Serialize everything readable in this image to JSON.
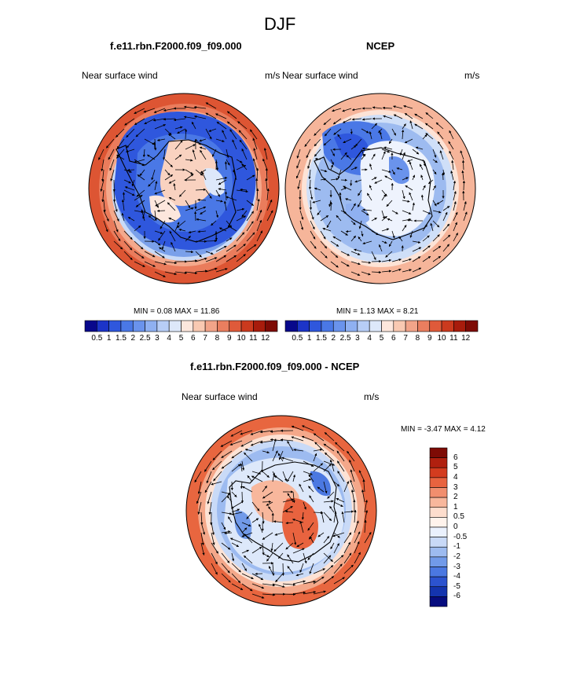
{
  "figure": {
    "title": "DJF"
  },
  "panels": [
    {
      "id": "model",
      "title": "f.e11.rbn.F2000.f09_f09.000",
      "left_label": "Near surface wind",
      "right_label": "m/s",
      "min_max": "MIN =   0.08 MAX =  11.86"
    },
    {
      "id": "obs",
      "title": "NCEP",
      "left_label": "Near surface wind",
      "right_label": "m/s",
      "min_max": "MIN =   1.13 MAX =   8.21"
    },
    {
      "id": "diff",
      "title": "f.e11.rbn.F2000.f09_f09.000 - NCEP",
      "left_label": "Near surface wind",
      "right_label": "m/s",
      "min_max": "MIN =  -3.47 MAX =   4.12"
    }
  ],
  "colorbar_abs": {
    "labels": [
      "0.5",
      "1",
      "1.5",
      "2",
      "2.5",
      "3",
      "4",
      "5",
      "6",
      "7",
      "8",
      "9",
      "10",
      "11",
      "12"
    ],
    "colors": [
      "#08088c",
      "#1c34c8",
      "#2f57dd",
      "#4a78e6",
      "#6a93ec",
      "#8fb0f1",
      "#b7cdf6",
      "#dde8fa",
      "#fde7dd",
      "#f9c9b2",
      "#f2a489",
      "#ea7e5f",
      "#df5a3a",
      "#cb3a1e",
      "#a81c0c",
      "#7e0b05"
    ]
  },
  "colorbar_diff": {
    "labels": [
      "6",
      "5",
      "4",
      "3",
      "2",
      "1",
      "0.5",
      "0",
      "-0.5",
      "-1",
      "-2",
      "-3",
      "-4",
      "-5",
      "-6"
    ],
    "colors": [
      "#7e0b05",
      "#b0200f",
      "#d33c1f",
      "#e8633f",
      "#f18e6e",
      "#f8b79c",
      "#fdddcd",
      "#fff3ec",
      "#eaf1fd",
      "#c8d9f7",
      "#9dbbf0",
      "#719ae9",
      "#4b78e1",
      "#2c53cf",
      "#1434ae",
      "#060c7e"
    ]
  }
}
